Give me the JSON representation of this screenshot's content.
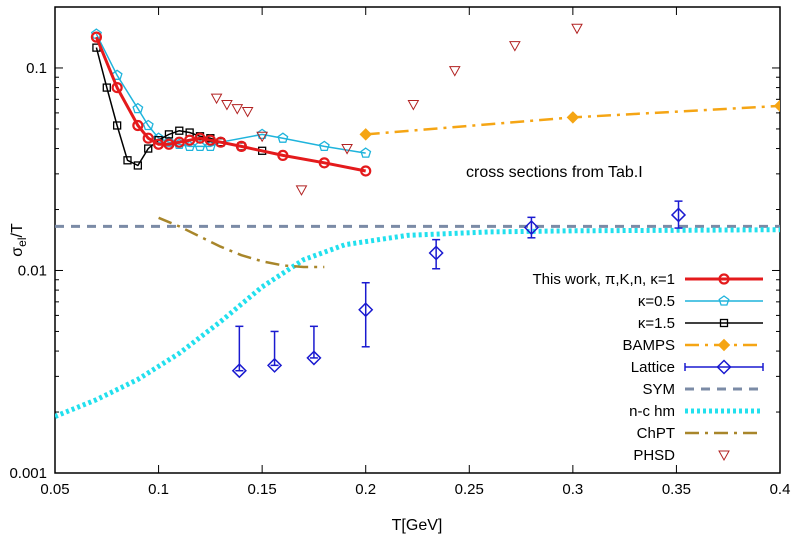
{
  "chart_data": {
    "type": "scatter",
    "title": "",
    "xlabel": "T[GeV]",
    "ylabel_main": "σ",
    "ylabel_sub": "el",
    "ylabel_tail": "/T",
    "xlim": [
      0.05,
      0.4
    ],
    "ylim": [
      0.001,
      0.2
    ],
    "yscale": "log",
    "grid": false,
    "legend_position": "bottom-right",
    "x_ticks": [
      {
        "v": 0.05,
        "label": "0.05"
      },
      {
        "v": 0.1,
        "label": "0.1"
      },
      {
        "v": 0.15,
        "label": "0.15"
      },
      {
        "v": 0.2,
        "label": "0.2"
      },
      {
        "v": 0.25,
        "label": "0.25"
      },
      {
        "v": 0.3,
        "label": "0.3"
      },
      {
        "v": 0.35,
        "label": "0.35"
      },
      {
        "v": 0.4,
        "label": "0.4"
      }
    ],
    "y_ticks": [
      {
        "v": 0.001,
        "label": "0.001"
      },
      {
        "v": 0.01,
        "label": "0.01"
      },
      {
        "v": 0.1,
        "label": "0.1"
      }
    ],
    "annotation": "cross sections from Tab.I",
    "series": [
      {
        "name": "This work, π,K,n, κ=1",
        "id": "this-work",
        "color": "#e41a1c",
        "style": "line-points",
        "marker": "circle",
        "line": "solid",
        "width": 3,
        "x": [
          0.07,
          0.08,
          0.09,
          0.095,
          0.1,
          0.105,
          0.11,
          0.115,
          0.12,
          0.125,
          0.13,
          0.14,
          0.16,
          0.18,
          0.2
        ],
        "y": [
          0.142,
          0.08,
          0.052,
          0.045,
          0.042,
          0.042,
          0.043,
          0.044,
          0.045,
          0.044,
          0.043,
          0.041,
          0.037,
          0.034,
          0.031
        ]
      },
      {
        "name": "κ=0.5",
        "id": "kappa-0-5",
        "color": "#1fb4dc",
        "style": "line-points",
        "marker": "pentagon",
        "line": "solid",
        "width": 1.5,
        "x": [
          0.07,
          0.08,
          0.09,
          0.095,
          0.1,
          0.105,
          0.11,
          0.115,
          0.12,
          0.125,
          0.13,
          0.15,
          0.16,
          0.18,
          0.2
        ],
        "y": [
          0.147,
          0.092,
          0.063,
          0.052,
          0.045,
          0.043,
          0.042,
          0.041,
          0.041,
          0.041,
          0.043,
          0.047,
          0.045,
          0.041,
          0.038
        ]
      },
      {
        "name": "κ=1.5",
        "id": "kappa-1-5",
        "color": "#000000",
        "style": "line-points",
        "marker": "square",
        "line": "solid",
        "width": 1.5,
        "x": [
          0.07,
          0.075,
          0.08,
          0.085,
          0.09,
          0.095,
          0.1,
          0.105,
          0.11,
          0.115,
          0.12,
          0.125,
          0.13,
          0.14,
          0.15
        ],
        "y": [
          0.126,
          0.08,
          0.052,
          0.035,
          0.033,
          0.04,
          0.044,
          0.047,
          0.049,
          0.048,
          0.046,
          0.045,
          0.043,
          0.041,
          0.039
        ]
      },
      {
        "name": "BAMPS",
        "id": "bamps",
        "color": "#f5a514",
        "style": "line-points",
        "marker": "diamond-filled",
        "line": "dashdot",
        "width": 2.5,
        "x": [
          0.2,
          0.3,
          0.4
        ],
        "y": [
          0.047,
          0.057,
          0.065
        ]
      },
      {
        "name": "Lattice",
        "id": "lattice",
        "color": "#1a1ad0",
        "style": "errorbar",
        "marker": "diamond",
        "x": [
          0.139,
          0.156,
          0.175,
          0.2,
          0.234,
          0.28,
          0.351
        ],
        "y": [
          0.0032,
          0.0034,
          0.0037,
          0.0064,
          0.0122,
          0.0163,
          0.0188
        ],
        "yerr_low": [
          0.0032,
          0.0034,
          0.0037,
          0.0042,
          0.0102,
          0.0145,
          0.0162
        ],
        "yerr_high": [
          0.0053,
          0.005,
          0.0053,
          0.0087,
          0.0142,
          0.0183,
          0.022
        ]
      },
      {
        "name": "SYM",
        "id": "sym",
        "color": "#7b8ba6",
        "style": "line",
        "line": "dashed",
        "width": 3,
        "x": [
          0.05,
          0.4
        ],
        "y": [
          0.0165,
          0.0165
        ]
      },
      {
        "name": "n-c hm",
        "id": "nc-hm",
        "color": "#22e0ee",
        "style": "line",
        "line": "dotted",
        "width": 5,
        "x": [
          0.05,
          0.07,
          0.09,
          0.11,
          0.13,
          0.15,
          0.17,
          0.19,
          0.22,
          0.26,
          0.3,
          0.35,
          0.4
        ],
        "y": [
          0.0019,
          0.0023,
          0.0029,
          0.0039,
          0.0056,
          0.0083,
          0.0113,
          0.0134,
          0.0149,
          0.0155,
          0.0157,
          0.0158,
          0.0159
        ]
      },
      {
        "name": "ChPT",
        "id": "chpt",
        "color": "#a8862a",
        "style": "line",
        "line": "dashdot",
        "width": 2.5,
        "x": [
          0.1,
          0.11,
          0.12,
          0.13,
          0.14,
          0.15,
          0.16,
          0.17,
          0.18
        ],
        "y": [
          0.0182,
          0.0165,
          0.0147,
          0.0131,
          0.0119,
          0.0111,
          0.0106,
          0.0104,
          0.0104
        ]
      },
      {
        "name": "PHSD",
        "id": "phsd",
        "color": "#b22222",
        "style": "points",
        "marker": "triangle-down",
        "x": [
          0.128,
          0.133,
          0.138,
          0.143,
          0.15,
          0.169,
          0.191,
          0.223,
          0.243,
          0.272,
          0.302
        ],
        "y": [
          0.071,
          0.066,
          0.063,
          0.061,
          0.046,
          0.025,
          0.04,
          0.066,
          0.097,
          0.129,
          0.157
        ]
      }
    ]
  }
}
